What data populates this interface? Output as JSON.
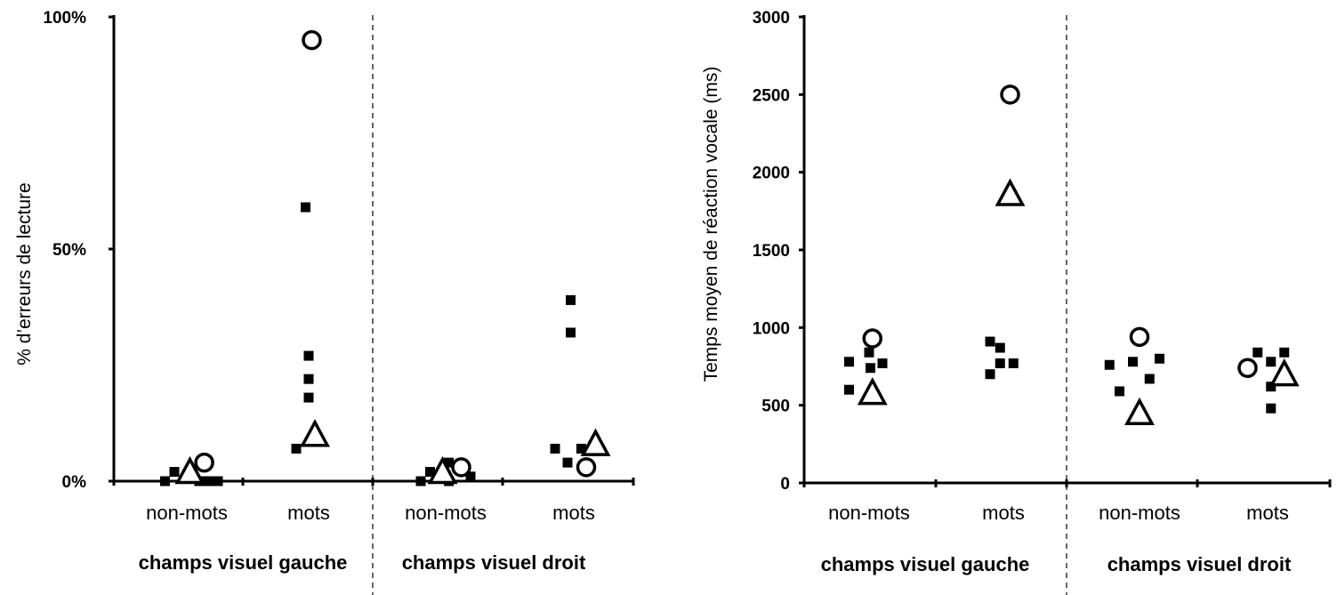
{
  "chart_data": [
    {
      "type": "scatter",
      "ylabel": "% d’erreurs de lecture",
      "yticks": [
        {
          "value": 0,
          "label": "0%"
        },
        {
          "value": 50,
          "label": "50%"
        },
        {
          "value": 100,
          "label": "100%"
        }
      ],
      "ylim": [
        0,
        100
      ],
      "categories": [
        "non-mots",
        "mots",
        "non-mots",
        "mots"
      ],
      "groups": [
        "champs visuel gauche",
        "champs visuel droit"
      ],
      "grid": false,
      "points": [
        {
          "cat": 0,
          "offset": -0.35,
          "value": 0,
          "marker": "square"
        },
        {
          "cat": 0,
          "offset": -0.2,
          "value": 2,
          "marker": "square"
        },
        {
          "cat": 0,
          "offset": 0.2,
          "value": 0,
          "marker": "square"
        },
        {
          "cat": 0,
          "offset": 0.35,
          "value": 0,
          "marker": "square"
        },
        {
          "cat": 0,
          "offset": 0.5,
          "value": 0,
          "marker": "square"
        },
        {
          "cat": 0,
          "offset": 0.05,
          "value": 2,
          "marker": "triangle"
        },
        {
          "cat": 0,
          "offset": 0.28,
          "value": 4,
          "marker": "circle"
        },
        {
          "cat": 1,
          "offset": -0.05,
          "value": 59,
          "marker": "square"
        },
        {
          "cat": 1,
          "offset": 0.0,
          "value": 27,
          "marker": "square"
        },
        {
          "cat": 1,
          "offset": 0.0,
          "value": 22,
          "marker": "square"
        },
        {
          "cat": 1,
          "offset": 0.0,
          "value": 18,
          "marker": "square"
        },
        {
          "cat": 1,
          "offset": -0.2,
          "value": 7,
          "marker": "square"
        },
        {
          "cat": 1,
          "offset": 0.1,
          "value": 10,
          "marker": "triangle"
        },
        {
          "cat": 1,
          "offset": 0.05,
          "value": 95,
          "marker": "circle"
        },
        {
          "cat": 2,
          "offset": -0.4,
          "value": 0,
          "marker": "square"
        },
        {
          "cat": 2,
          "offset": -0.25,
          "value": 2,
          "marker": "square"
        },
        {
          "cat": 2,
          "offset": 0.05,
          "value": 4,
          "marker": "square"
        },
        {
          "cat": 2,
          "offset": 0.05,
          "value": 0,
          "marker": "square"
        },
        {
          "cat": 2,
          "offset": 0.4,
          "value": 1,
          "marker": "square"
        },
        {
          "cat": 2,
          "offset": -0.05,
          "value": 2,
          "marker": "triangle"
        },
        {
          "cat": 2,
          "offset": 0.25,
          "value": 3,
          "marker": "circle"
        },
        {
          "cat": 3,
          "offset": -0.05,
          "value": 39,
          "marker": "square"
        },
        {
          "cat": 3,
          "offset": -0.05,
          "value": 32,
          "marker": "square"
        },
        {
          "cat": 3,
          "offset": -0.3,
          "value": 7,
          "marker": "square"
        },
        {
          "cat": 3,
          "offset": -0.1,
          "value": 4,
          "marker": "square"
        },
        {
          "cat": 3,
          "offset": 0.12,
          "value": 7,
          "marker": "square"
        },
        {
          "cat": 3,
          "offset": 0.35,
          "value": 8,
          "marker": "triangle"
        },
        {
          "cat": 3,
          "offset": 0.2,
          "value": 3,
          "marker": "circle"
        }
      ]
    },
    {
      "type": "scatter",
      "ylabel": "Temps moyen de réaction vocale (ms)",
      "yticks": [
        {
          "value": 0,
          "label": "0"
        },
        {
          "value": 500,
          "label": "500"
        },
        {
          "value": 1000,
          "label": "1000"
        },
        {
          "value": 1500,
          "label": "1500"
        },
        {
          "value": 2000,
          "label": "2000"
        },
        {
          "value": 2500,
          "label": "2500"
        },
        {
          "value": 3000,
          "label": "3000"
        }
      ],
      "ylim": [
        0,
        3000
      ],
      "categories": [
        "non-mots",
        "mots",
        "non-mots",
        "mots"
      ],
      "groups": [
        "champs visuel gauche",
        "champs visuel droit"
      ],
      "grid": false,
      "points": [
        {
          "cat": 0,
          "offset": -0.3,
          "value": 780,
          "marker": "square"
        },
        {
          "cat": 0,
          "offset": 0.0,
          "value": 840,
          "marker": "square"
        },
        {
          "cat": 0,
          "offset": 0.02,
          "value": 740,
          "marker": "square"
        },
        {
          "cat": 0,
          "offset": 0.2,
          "value": 770,
          "marker": "square"
        },
        {
          "cat": 0,
          "offset": -0.3,
          "value": 600,
          "marker": "square"
        },
        {
          "cat": 0,
          "offset": 0.05,
          "value": 580,
          "marker": "triangle"
        },
        {
          "cat": 0,
          "offset": 0.05,
          "value": 930,
          "marker": "circle"
        },
        {
          "cat": 1,
          "offset": -0.2,
          "value": 910,
          "marker": "square"
        },
        {
          "cat": 1,
          "offset": -0.05,
          "value": 870,
          "marker": "square"
        },
        {
          "cat": 1,
          "offset": -0.05,
          "value": 770,
          "marker": "square"
        },
        {
          "cat": 1,
          "offset": 0.15,
          "value": 770,
          "marker": "square"
        },
        {
          "cat": 1,
          "offset": -0.2,
          "value": 700,
          "marker": "square"
        },
        {
          "cat": 1,
          "offset": 0.1,
          "value": 1860,
          "marker": "triangle"
        },
        {
          "cat": 1,
          "offset": 0.1,
          "value": 2500,
          "marker": "circle"
        },
        {
          "cat": 2,
          "offset": -0.45,
          "value": 760,
          "marker": "square"
        },
        {
          "cat": 2,
          "offset": -0.1,
          "value": 780,
          "marker": "square"
        },
        {
          "cat": 2,
          "offset": 0.3,
          "value": 800,
          "marker": "square"
        },
        {
          "cat": 2,
          "offset": 0.15,
          "value": 670,
          "marker": "square"
        },
        {
          "cat": 2,
          "offset": -0.3,
          "value": 590,
          "marker": "square"
        },
        {
          "cat": 2,
          "offset": 0.0,
          "value": 450,
          "marker": "triangle"
        },
        {
          "cat": 2,
          "offset": 0.0,
          "value": 940,
          "marker": "circle"
        },
        {
          "cat": 3,
          "offset": -0.15,
          "value": 840,
          "marker": "square"
        },
        {
          "cat": 3,
          "offset": 0.05,
          "value": 780,
          "marker": "square"
        },
        {
          "cat": 3,
          "offset": 0.25,
          "value": 840,
          "marker": "square"
        },
        {
          "cat": 3,
          "offset": 0.05,
          "value": 620,
          "marker": "square"
        },
        {
          "cat": 3,
          "offset": 0.05,
          "value": 480,
          "marker": "square"
        },
        {
          "cat": 3,
          "offset": 0.25,
          "value": 700,
          "marker": "triangle"
        },
        {
          "cat": 3,
          "offset": -0.3,
          "value": 740,
          "marker": "circle"
        }
      ]
    }
  ]
}
